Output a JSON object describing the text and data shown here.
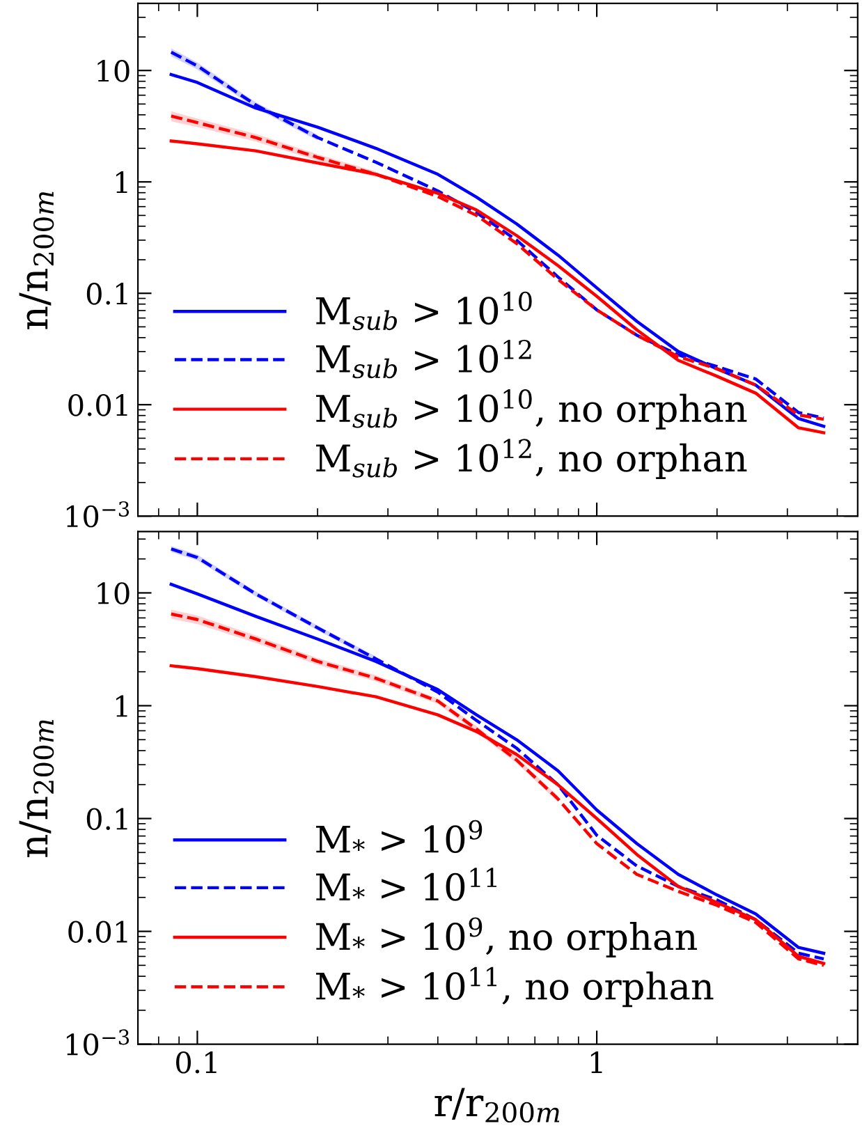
{
  "chart_data": [
    {
      "type": "line",
      "xlabel": null,
      "ylabel": "n/n$_{200m}$",
      "log": "xy",
      "xlim": [
        0.071,
        4.5
      ],
      "ylim": [
        0.001,
        40
      ],
      "xticks": [
        0.1,
        1
      ],
      "yticks": [
        {
          "value": 0.001,
          "label": "10$^{−3}$"
        },
        0.01,
        0.1,
        1,
        10
      ],
      "tick_labels": "y",
      "legend": "bottom left",
      "grid": false,
      "x": [
        0.086,
        0.1,
        0.14,
        0.2,
        0.28,
        0.4,
        0.5,
        0.63,
        0.8,
        1,
        1.26,
        1.6,
        2,
        2.5,
        3.2,
        3.7
      ],
      "series": [
        {
          "name": "M$_{sub}$ > 10$^{10}$",
          "color": "#0000ff",
          "line_style": "solid",
          "values": [
            9.2,
            7.8,
            4.6,
            3.1,
            2.0,
            1.17,
            0.73,
            0.42,
            0.22,
            0.112,
            0.056,
            0.03,
            0.021,
            0.015,
            0.0075,
            0.0064
          ]
        },
        {
          "name": "M$_{sub}$ > 10$^{12}$",
          "color": "#0000ff",
          "line_style": "dashed",
          "values": [
            14.6,
            11,
            4.9,
            2.5,
            1.5,
            0.83,
            0.53,
            0.3,
            0.14,
            0.071,
            0.042,
            0.028,
            0.022,
            0.017,
            0.0085,
            0.0076
          ],
          "lower": [
            13.4,
            10.2,
            4.6,
            2.35,
            null,
            null,
            null,
            null,
            null,
            null,
            null,
            null,
            null,
            null,
            null,
            null
          ],
          "upper": [
            15.8,
            11.8,
            5.2,
            2.65,
            null,
            null,
            null,
            null,
            null,
            null,
            null,
            null,
            null,
            null,
            null,
            null
          ]
        },
        {
          "name": "M$_{sub}$ > 10$^{10}$, no orphan",
          "color": "#ff0000",
          "line_style": "solid",
          "values": [
            2.33,
            2.2,
            1.9,
            1.48,
            1.17,
            0.79,
            0.56,
            0.33,
            0.177,
            0.094,
            0.047,
            0.025,
            0.018,
            0.0127,
            0.0062,
            0.0056
          ]
        },
        {
          "name": "M$_{sub}$ > 10$^{12}$, no orphan",
          "color": "#ff0000",
          "line_style": "dashed",
          "values": [
            3.9,
            3.4,
            2.5,
            1.66,
            1.17,
            0.74,
            0.5,
            0.28,
            0.133,
            0.071,
            0.042,
            0.027,
            0.021,
            0.015,
            0.0081,
            0.0074
          ],
          "lower": [
            3.5,
            3.1,
            2.3,
            1.55,
            1.1,
            null,
            null,
            null,
            null,
            null,
            null,
            null,
            null,
            null,
            null,
            null
          ],
          "upper": [
            4.3,
            3.7,
            2.7,
            1.77,
            1.24,
            null,
            null,
            null,
            null,
            null,
            null,
            null,
            null,
            null,
            null,
            null
          ]
        }
      ]
    },
    {
      "type": "line",
      "xlabel": "r/r$_{200m}$",
      "ylabel": "n/n$_{200m}$",
      "log": "xy",
      "xlim": [
        0.071,
        4.5
      ],
      "ylim": [
        0.001,
        35
      ],
      "xticks": [
        0.1,
        1
      ],
      "yticks": [
        {
          "value": 0.001,
          "label": "10$^{−3}$"
        },
        0.01,
        0.1,
        1,
        10
      ],
      "legend": "bottom left",
      "grid": false,
      "x": [
        0.086,
        0.1,
        0.14,
        0.2,
        0.28,
        0.4,
        0.5,
        0.63,
        0.8,
        1,
        1.26,
        1.6,
        2,
        2.5,
        3.2,
        3.7
      ],
      "series": [
        {
          "name": "M$_{*}$ > 10$^{9}$",
          "color": "#0000ff",
          "line_style": "solid",
          "values": [
            11.9,
            9.8,
            6.2,
            3.9,
            2.47,
            1.39,
            0.83,
            0.5,
            0.265,
            0.119,
            0.06,
            0.032,
            0.021,
            0.0143,
            0.0072,
            0.0064
          ]
        },
        {
          "name": "M$_{*}$ > 10$^{11}$",
          "color": "#0000ff",
          "line_style": "dashed",
          "values": [
            24.5,
            20.6,
            9.8,
            4.9,
            2.6,
            1.32,
            0.74,
            0.42,
            0.199,
            0.071,
            0.038,
            0.025,
            0.019,
            0.0127,
            0.0064,
            0.0057
          ],
          "lower": [
            23,
            19.4,
            9.3,
            4.65,
            2.47,
            null,
            null,
            null,
            null,
            null,
            null,
            null,
            null,
            null,
            null,
            null
          ],
          "upper": [
            26,
            21.8,
            10.3,
            5.15,
            2.73,
            null,
            null,
            null,
            null,
            null,
            null,
            null,
            null,
            null,
            null,
            null
          ]
        },
        {
          "name": "M$_{*}$ > 10$^{9}$, no orphan",
          "color": "#ff0000",
          "line_style": "solid",
          "values": [
            2.26,
            2.13,
            1.81,
            1.48,
            1.2,
            0.83,
            0.59,
            0.37,
            0.199,
            0.1,
            0.048,
            0.025,
            0.018,
            0.0127,
            0.006,
            0.0052
          ]
        },
        {
          "name": "M$_{*}$ > 10$^{11}$, no orphan",
          "color": "#ff0000",
          "line_style": "dashed",
          "values": [
            6.5,
            5.8,
            3.9,
            2.47,
            1.75,
            1.1,
            0.62,
            0.33,
            0.149,
            0.06,
            0.032,
            0.0226,
            0.017,
            0.012,
            0.0057,
            0.005
          ],
          "lower": [
            5.9,
            5.3,
            3.6,
            2.3,
            1.64,
            1.04,
            0.58,
            0.31,
            0.14,
            null,
            null,
            null,
            null,
            null,
            null,
            null
          ],
          "upper": [
            7.1,
            6.3,
            4.2,
            2.64,
            1.86,
            1.16,
            0.66,
            0.35,
            0.158,
            null,
            null,
            null,
            null,
            null,
            null,
            null
          ]
        }
      ]
    }
  ]
}
